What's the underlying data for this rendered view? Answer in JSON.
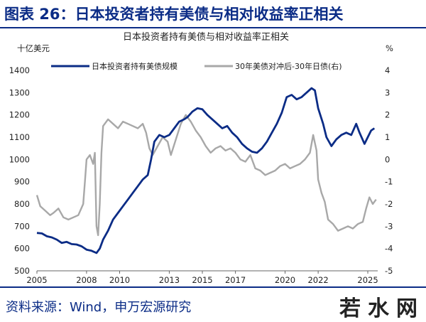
{
  "figure": {
    "title": "图表 26：日本投资者持有美债与相对收益率正相关",
    "source": "资料来源：Wind，申万宏源研究",
    "watermark": "若水网"
  },
  "colors": {
    "primary": "#0b2c86",
    "secondary": "#a8a8a8"
  },
  "chart_data": {
    "type": "line",
    "title": "日本投资者持有美债与相对收益率正相关",
    "left_axis": {
      "unit": "十亿美元",
      "min": 500,
      "max": 1400,
      "ticks": [
        500,
        600,
        700,
        800,
        900,
        1000,
        1100,
        1200,
        1300,
        1400
      ]
    },
    "right_axis": {
      "unit": "%",
      "min": -5,
      "max": 4,
      "ticks": [
        -5,
        -4,
        -3,
        -2,
        -1,
        0,
        1,
        2,
        3,
        4
      ]
    },
    "x_axis": {
      "min": 2005,
      "max": 2025.6,
      "ticks": [
        2005,
        2008,
        2010,
        2013,
        2015,
        2017,
        2020,
        2022,
        2025
      ]
    },
    "grid": false,
    "legend_position": "top",
    "series": [
      {
        "name": "日本投资者持有美债规模",
        "axis": "left",
        "color": "#0b2c86",
        "points": [
          [
            2005.0,
            670
          ],
          [
            2005.3,
            668
          ],
          [
            2005.6,
            655
          ],
          [
            2005.9,
            650
          ],
          [
            2006.2,
            640
          ],
          [
            2006.5,
            625
          ],
          [
            2006.8,
            630
          ],
          [
            2007.1,
            620
          ],
          [
            2007.4,
            618
          ],
          [
            2007.7,
            610
          ],
          [
            2008.0,
            595
          ],
          [
            2008.3,
            590
          ],
          [
            2008.6,
            580
          ],
          [
            2008.8,
            600
          ],
          [
            2009.0,
            640
          ],
          [
            2009.3,
            680
          ],
          [
            2009.6,
            730
          ],
          [
            2009.9,
            760
          ],
          [
            2010.2,
            790
          ],
          [
            2010.5,
            820
          ],
          [
            2010.8,
            850
          ],
          [
            2011.1,
            880
          ],
          [
            2011.4,
            910
          ],
          [
            2011.7,
            930
          ],
          [
            2011.9,
            1000
          ],
          [
            2012.1,
            1080
          ],
          [
            2012.4,
            1110
          ],
          [
            2012.7,
            1100
          ],
          [
            2013.0,
            1110
          ],
          [
            2013.3,
            1140
          ],
          [
            2013.6,
            1170
          ],
          [
            2013.9,
            1180
          ],
          [
            2014.1,
            1190
          ],
          [
            2014.4,
            1215
          ],
          [
            2014.7,
            1230
          ],
          [
            2015.0,
            1225
          ],
          [
            2015.3,
            1200
          ],
          [
            2015.6,
            1180
          ],
          [
            2015.9,
            1160
          ],
          [
            2016.2,
            1140
          ],
          [
            2016.5,
            1150
          ],
          [
            2016.8,
            1120
          ],
          [
            2017.1,
            1100
          ],
          [
            2017.4,
            1070
          ],
          [
            2017.7,
            1050
          ],
          [
            2018.0,
            1035
          ],
          [
            2018.3,
            1030
          ],
          [
            2018.6,
            1050
          ],
          [
            2018.9,
            1080
          ],
          [
            2019.2,
            1120
          ],
          [
            2019.5,
            1160
          ],
          [
            2019.8,
            1210
          ],
          [
            2020.1,
            1280
          ],
          [
            2020.4,
            1290
          ],
          [
            2020.7,
            1270
          ],
          [
            2021.0,
            1280
          ],
          [
            2021.3,
            1300
          ],
          [
            2021.6,
            1320
          ],
          [
            2021.8,
            1310
          ],
          [
            2022.0,
            1230
          ],
          [
            2022.3,
            1160
          ],
          [
            2022.5,
            1100
          ],
          [
            2022.8,
            1060
          ],
          [
            2023.1,
            1090
          ],
          [
            2023.4,
            1110
          ],
          [
            2023.7,
            1120
          ],
          [
            2024.0,
            1110
          ],
          [
            2024.3,
            1160
          ],
          [
            2024.5,
            1120
          ],
          [
            2024.8,
            1070
          ],
          [
            2025.0,
            1100
          ],
          [
            2025.2,
            1130
          ],
          [
            2025.4,
            1140
          ]
        ]
      },
      {
        "name": "30年美债对冲后-30年日债(右)",
        "axis": "right",
        "color": "#a8a8a8",
        "points": [
          [
            2005.0,
            -1.6
          ],
          [
            2005.2,
            -2.1
          ],
          [
            2005.5,
            -2.3
          ],
          [
            2005.8,
            -2.5
          ],
          [
            2006.0,
            -2.4
          ],
          [
            2006.3,
            -2.2
          ],
          [
            2006.6,
            -2.6
          ],
          [
            2006.9,
            -2.7
          ],
          [
            2007.2,
            -2.6
          ],
          [
            2007.5,
            -2.5
          ],
          [
            2007.8,
            -2.0
          ],
          [
            2007.9,
            -1.0
          ],
          [
            2008.0,
            0.0
          ],
          [
            2008.2,
            0.2
          ],
          [
            2008.4,
            -0.2
          ],
          [
            2008.5,
            0.3
          ],
          [
            2008.6,
            -3.0
          ],
          [
            2008.7,
            -3.4
          ],
          [
            2008.8,
            -2.0
          ],
          [
            2008.9,
            0.3
          ],
          [
            2009.0,
            1.5
          ],
          [
            2009.3,
            1.8
          ],
          [
            2009.6,
            1.6
          ],
          [
            2009.9,
            1.4
          ],
          [
            2010.2,
            1.7
          ],
          [
            2010.5,
            1.6
          ],
          [
            2010.8,
            1.5
          ],
          [
            2011.1,
            1.4
          ],
          [
            2011.4,
            1.6
          ],
          [
            2011.6,
            1.2
          ],
          [
            2011.8,
            0.5
          ],
          [
            2012.0,
            0.2
          ],
          [
            2012.3,
            0.6
          ],
          [
            2012.6,
            1.0
          ],
          [
            2012.9,
            0.8
          ],
          [
            2013.1,
            0.2
          ],
          [
            2013.4,
            0.9
          ],
          [
            2013.7,
            1.6
          ],
          [
            2014.0,
            2.0
          ],
          [
            2014.3,
            1.7
          ],
          [
            2014.6,
            1.3
          ],
          [
            2014.9,
            1.0
          ],
          [
            2015.2,
            0.6
          ],
          [
            2015.5,
            0.3
          ],
          [
            2015.8,
            0.5
          ],
          [
            2016.1,
            0.6
          ],
          [
            2016.4,
            0.4
          ],
          [
            2016.7,
            0.5
          ],
          [
            2017.0,
            0.3
          ],
          [
            2017.3,
            0.0
          ],
          [
            2017.6,
            -0.1
          ],
          [
            2017.9,
            0.2
          ],
          [
            2018.2,
            -0.4
          ],
          [
            2018.5,
            -0.5
          ],
          [
            2018.8,
            -0.7
          ],
          [
            2019.1,
            -0.6
          ],
          [
            2019.4,
            -0.5
          ],
          [
            2019.7,
            -0.3
          ],
          [
            2020.0,
            -0.2
          ],
          [
            2020.3,
            -0.4
          ],
          [
            2020.6,
            -0.3
          ],
          [
            2020.9,
            -0.2
          ],
          [
            2021.2,
            0.0
          ],
          [
            2021.5,
            0.3
          ],
          [
            2021.7,
            1.1
          ],
          [
            2021.9,
            0.4
          ],
          [
            2022.0,
            -0.9
          ],
          [
            2022.2,
            -1.5
          ],
          [
            2022.4,
            -1.9
          ],
          [
            2022.6,
            -2.7
          ],
          [
            2022.9,
            -2.9
          ],
          [
            2023.2,
            -3.2
          ],
          [
            2023.5,
            -3.1
          ],
          [
            2023.8,
            -3.0
          ],
          [
            2024.1,
            -3.1
          ],
          [
            2024.4,
            -2.9
          ],
          [
            2024.7,
            -2.8
          ],
          [
            2024.9,
            -2.2
          ],
          [
            2025.1,
            -1.7
          ],
          [
            2025.3,
            -2.0
          ],
          [
            2025.5,
            -1.8
          ]
        ]
      }
    ]
  }
}
